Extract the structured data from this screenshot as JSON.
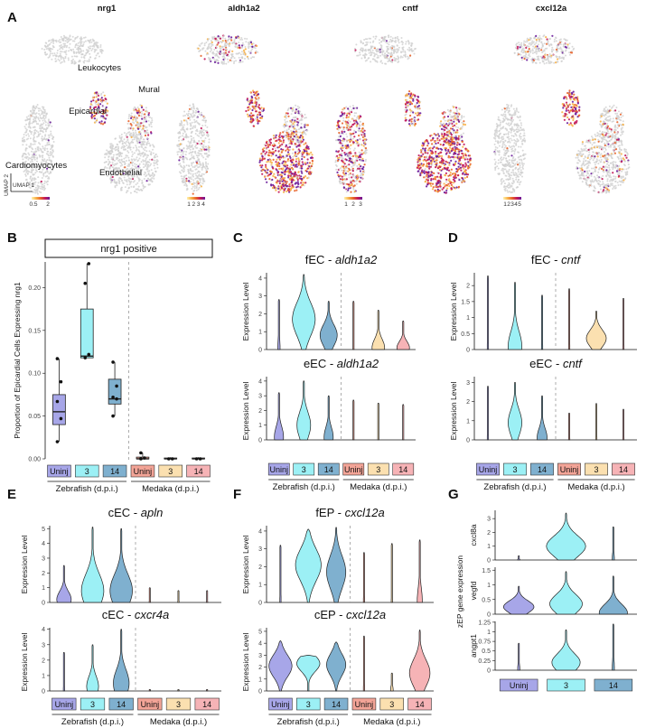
{
  "panel_letters": {
    "A": "A",
    "B": "B",
    "C": "C",
    "D": "D",
    "E": "E",
    "F": "F",
    "G": "G"
  },
  "umap": {
    "genes": [
      "nrg1",
      "aldh1a2",
      "cntf",
      "cxcl12a"
    ],
    "cell_types": [
      "Leukocytes",
      "Mural",
      "Epicardial",
      "Cardiomyocytes",
      "Endothelial"
    ],
    "axis_y": "UMAP 2",
    "axis_x": "UMAP 1",
    "colorbar_ticks": [
      [
        "0.5",
        "2"
      ],
      [
        "1",
        "2",
        "3",
        "4"
      ],
      [
        "1",
        "2",
        "3"
      ],
      [
        "1",
        "2",
        "3",
        "4",
        "5"
      ]
    ],
    "gradient": [
      "#fff3b0",
      "#f7b24a",
      "#e8642c",
      "#c2185b",
      "#6a1b9a"
    ]
  },
  "groups": {
    "labels": [
      "Uninj",
      "3",
      "14",
      "Uninj",
      "3",
      "14"
    ],
    "colors": [
      "#a7a6e8",
      "#9cf0f5",
      "#7fb0cf",
      "#f3a497",
      "#fbe0b0",
      "#f6b3b6"
    ],
    "zebrafish": "Zebrafish (d.p.i.)",
    "medaka": "Medaka (d.p.i.)"
  },
  "panelB": {
    "strip": "nrg1 positive",
    "ylabel": "Proportion of Epicardial Cells Expressing nrg1",
    "yticks": [
      "0.00",
      "0.05",
      "0.10",
      "0.15",
      "0.20"
    ]
  },
  "panelC": {
    "top_prefix": "fEC - ",
    "top_gene": "aldh1a2",
    "bottom_prefix": "eEC - ",
    "bottom_gene": "aldh1a2",
    "ylabel": "Expression Level"
  },
  "panelD": {
    "top_prefix": "fEC - ",
    "top_gene": "cntf",
    "bottom_prefix": "eEC - ",
    "bottom_gene": "cntf",
    "ylabel": "Expression Level"
  },
  "panelE": {
    "top_prefix": "cEC - ",
    "top_gene": "apln",
    "bottom_prefix": "cEC - ",
    "bottom_gene": "cxcr4a",
    "ylabel": "Expression Level"
  },
  "panelF": {
    "top_prefix": "fEP - ",
    "top_gene": "cxcl12a",
    "bottom_prefix": "cEP - ",
    "bottom_gene": "cxcl12a",
    "ylabel": "Expression Level"
  },
  "panelG": {
    "ylabel": "zEP gene expression",
    "genes": [
      "cxcl8a",
      "vegfd",
      "angpt1"
    ]
  },
  "chart_data": [
    {
      "type": "box",
      "panel": "B",
      "title": "nrg1 positive",
      "ylabel": "Proportion of Epicardial Cells Expressing nrg1",
      "ylim": [
        0,
        0.23
      ],
      "categories": [
        "Uninj",
        "3",
        "14",
        "Uninj",
        "3",
        "14"
      ],
      "median": [
        0.055,
        0.12,
        0.07,
        0.0,
        0.0,
        0.0
      ],
      "q1": [
        0.04,
        0.118,
        0.064,
        0.0,
        0.0,
        0.0
      ],
      "q3": [
        0.075,
        0.175,
        0.093,
        0.002,
        0.001,
        0.001
      ],
      "whisker_low": [
        0.02,
        0.118,
        0.05,
        0.0,
        0.0,
        0.0
      ],
      "whisker_high": [
        0.117,
        0.228,
        0.113,
        0.007,
        0.002,
        0.002
      ],
      "points": [
        [
          0.02,
          0.047,
          0.067,
          0.09,
          0.117
        ],
        [
          0.118,
          0.122,
          0.205,
          0.228
        ],
        [
          0.05,
          0.07,
          0.072,
          0.085,
          0.113
        ],
        [
          0.0,
          0.001,
          0.007
        ],
        [
          0.0,
          0.0
        ],
        [
          0.0,
          0.0
        ]
      ]
    },
    {
      "type": "violin",
      "panel": "C-top",
      "ylabel": "Expression Level",
      "ylim": [
        0,
        4.3
      ],
      "yticks": [
        0,
        1,
        2,
        3,
        4
      ],
      "categories": [
        "Uninj",
        "3",
        "14",
        "Uninj",
        "3",
        "14"
      ],
      "max": [
        2.8,
        4.2,
        2.7,
        2.7,
        2.2,
        1.6
      ],
      "width": [
        0.1,
        1.0,
        0.75,
        0.05,
        0.55,
        0.55
      ],
      "center": [
        0.05,
        1.7,
        0.8,
        0.05,
        0.1,
        0.1
      ]
    },
    {
      "type": "violin",
      "panel": "C-bottom",
      "ylabel": "Expression Level",
      "ylim": [
        0,
        4.3
      ],
      "yticks": [
        0,
        1,
        2,
        3,
        4
      ],
      "categories": [
        "Uninj",
        "3",
        "14",
        "Uninj",
        "3",
        "14"
      ],
      "max": [
        3.2,
        4.0,
        3.0,
        2.7,
        2.5,
        2.4
      ],
      "width": [
        0.4,
        0.6,
        0.4,
        0.05,
        0.05,
        0.05
      ],
      "center": [
        0.2,
        1.0,
        0.2,
        0.05,
        0.05,
        0.05
      ]
    },
    {
      "type": "violin",
      "panel": "D-top",
      "ylabel": "Expression Level",
      "ylim": [
        0,
        2.4
      ],
      "yticks": [
        0.0,
        0.5,
        1.0,
        1.5,
        2.0
      ],
      "categories": [
        "Uninj",
        "3",
        "14",
        "Uninj",
        "3",
        "14"
      ],
      "max": [
        2.3,
        2.1,
        1.7,
        1.9,
        1.2,
        1.6
      ],
      "width": [
        0.05,
        0.55,
        0.05,
        0.05,
        0.8,
        0.05
      ],
      "center": [
        0.02,
        0.1,
        0.02,
        0.02,
        0.35,
        0.02
      ]
    },
    {
      "type": "violin",
      "panel": "D-bottom",
      "ylabel": "Expression Level",
      "ylim": [
        0,
        3.3
      ],
      "yticks": [
        0,
        1,
        2,
        3
      ],
      "categories": [
        "Uninj",
        "3",
        "14",
        "Uninj",
        "3",
        "14"
      ],
      "max": [
        2.8,
        3.0,
        2.3,
        1.4,
        1.9,
        1.6
      ],
      "width": [
        0.05,
        0.55,
        0.4,
        0.05,
        0.05,
        0.05
      ],
      "center": [
        0.02,
        0.9,
        0.1,
        0.02,
        0.02,
        0.02
      ]
    },
    {
      "type": "violin",
      "panel": "E-top",
      "ylabel": "Expression Level",
      "ylim": [
        0,
        5.2
      ],
      "yticks": [
        0,
        1,
        2,
        3,
        4,
        5
      ],
      "categories": [
        "Uninj",
        "3",
        "14",
        "Uninj",
        "3",
        "14"
      ],
      "max": [
        2.5,
        5.1,
        5.0,
        1.0,
        0.8,
        0.8
      ],
      "width": [
        0.55,
        0.85,
        0.85,
        0.05,
        0.05,
        0.05
      ],
      "center": [
        0.2,
        0.8,
        0.8,
        0.02,
        0.02,
        0.02
      ]
    },
    {
      "type": "violin",
      "panel": "E-bottom",
      "ylabel": "Expression Level",
      "ylim": [
        0,
        4.1
      ],
      "yticks": [
        0,
        1,
        2,
        3,
        4
      ],
      "categories": [
        "Uninj",
        "3",
        "14",
        "Uninj",
        "3",
        "14"
      ],
      "max": [
        2.5,
        3.0,
        4.0,
        0.1,
        0.1,
        0.1
      ],
      "width": [
        0.05,
        0.45,
        0.6,
        0.05,
        0.05,
        0.05
      ],
      "center": [
        0.02,
        0.3,
        0.5,
        0.02,
        0.02,
        0.02
      ]
    },
    {
      "type": "violin",
      "panel": "F-top",
      "ylabel": "Expression Level",
      "ylim": [
        0,
        4.3
      ],
      "yticks": [
        0,
        1,
        2,
        3,
        4
      ],
      "categories": [
        "Uninj",
        "3",
        "14",
        "Uninj",
        "3",
        "14"
      ],
      "max": [
        3.2,
        4.1,
        4.2,
        2.8,
        3.3,
        3.5
      ],
      "width": [
        0.05,
        1.0,
        0.75,
        0.05,
        0.05,
        0.2
      ],
      "center": [
        0.02,
        2.1,
        1.7,
        0.02,
        0.02,
        0.05
      ]
    },
    {
      "type": "violin",
      "panel": "F-bottom",
      "ylabel": "Expression Level",
      "ylim": [
        0,
        5.3
      ],
      "yticks": [
        0,
        1,
        2,
        3,
        4,
        5
      ],
      "categories": [
        "Uninj",
        "3",
        "14",
        "Uninj",
        "3",
        "14"
      ],
      "max": [
        4.2,
        3.0,
        4.1,
        4.6,
        1.5,
        5.1
      ],
      "width": [
        0.9,
        0.9,
        0.75,
        0.05,
        0.1,
        0.8
      ],
      "center": [
        2.1,
        2.3,
        2.2,
        0.02,
        0.1,
        1.5
      ]
    },
    {
      "type": "violin",
      "panel": "G-cxcl8a",
      "ylabel": "cxcl8a",
      "ylim": [
        0,
        3.6
      ],
      "yticks": [
        0,
        1,
        2,
        3
      ],
      "categories": [
        "Uninj",
        "3",
        "14"
      ],
      "max": [
        0.3,
        3.4,
        2.4
      ],
      "width": [
        0.05,
        0.9,
        0.05
      ],
      "center": [
        0.02,
        1.0,
        0.02
      ]
    },
    {
      "type": "violin",
      "panel": "G-vegfd",
      "ylabel": "vegfd",
      "ylim": [
        0,
        1.6
      ],
      "yticks": [
        0.0,
        0.5,
        1.0,
        1.5
      ],
      "categories": [
        "Uninj",
        "3",
        "14"
      ],
      "max": [
        0.95,
        1.45,
        1.3
      ],
      "width": [
        0.7,
        0.75,
        0.65
      ],
      "center": [
        0.25,
        0.35,
        0.05
      ]
    },
    {
      "type": "violin",
      "panel": "G-angpt1",
      "ylabel": "angpt1",
      "ylim": [
        0,
        1.27
      ],
      "yticks": [
        0.0,
        0.25,
        0.5,
        0.75,
        1.0,
        1.25
      ],
      "categories": [
        "Uninj",
        "3",
        "14"
      ],
      "max": [
        0.7,
        1.05,
        1.2
      ],
      "width": [
        0.05,
        0.65,
        0.05
      ],
      "center": [
        0.02,
        0.2,
        0.02
      ]
    }
  ]
}
